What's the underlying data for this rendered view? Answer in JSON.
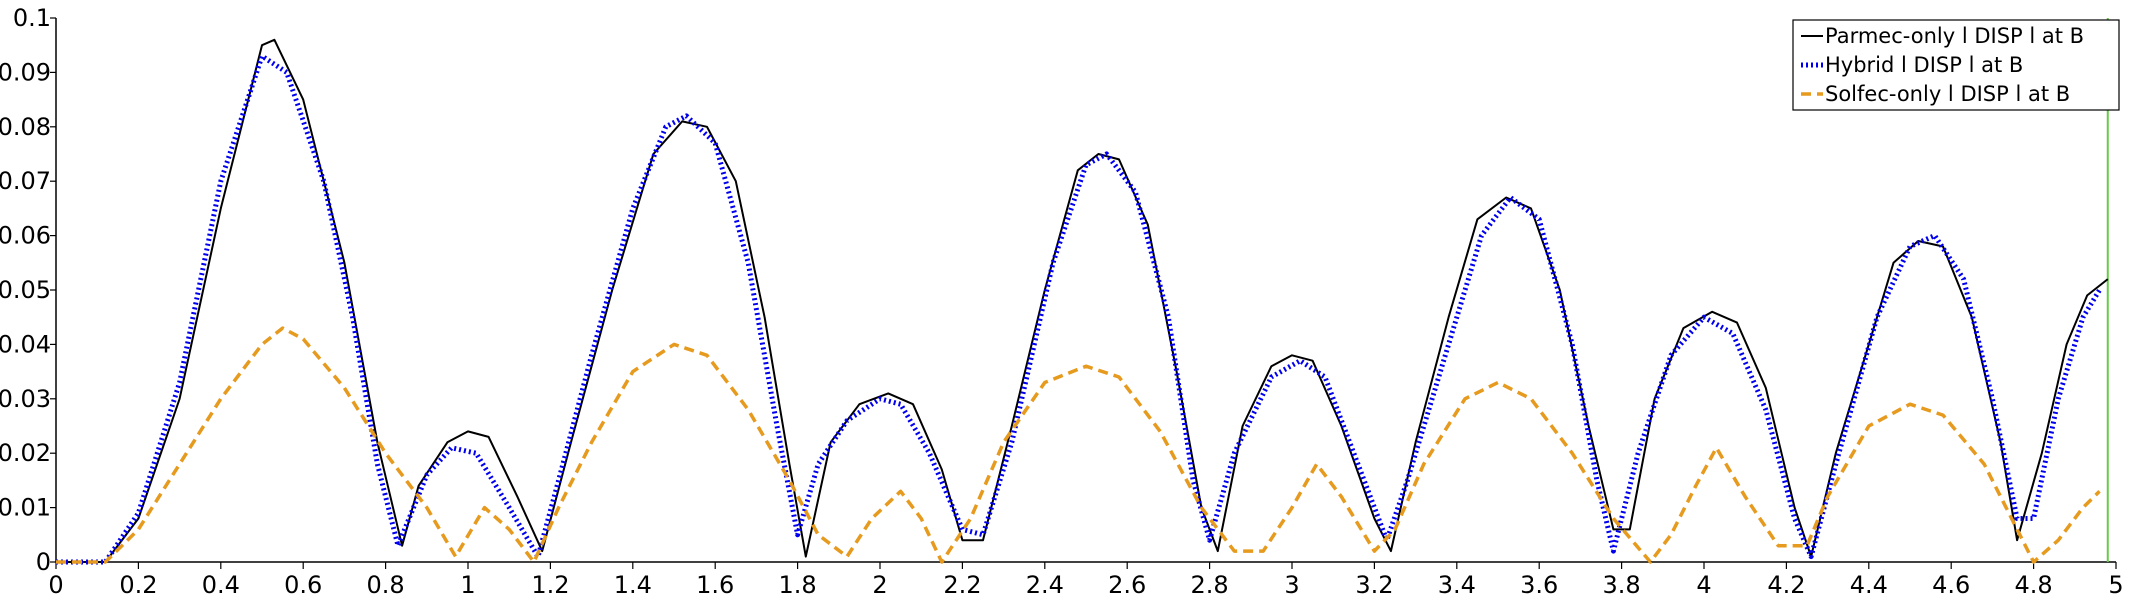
{
  "chart_data": {
    "type": "line",
    "xlim": [
      0,
      5
    ],
    "ylim": [
      0,
      0.1
    ],
    "x_ticks": [
      "0",
      "0.2",
      "0.4",
      "0.6",
      "0.8",
      "1",
      "1.2",
      "1.4",
      "1.6",
      "1.8",
      "2",
      "2.2",
      "2.4",
      "2.6",
      "2.8",
      "3",
      "3.2",
      "3.4",
      "3.6",
      "3.8",
      "4",
      "4.2",
      "4.4",
      "4.6",
      "4.8",
      "5"
    ],
    "y_ticks": [
      "0",
      "0.01",
      "0.02",
      "0.03",
      "0.04",
      "0.05",
      "0.06",
      "0.07",
      "0.08",
      "0.09",
      "0.1"
    ],
    "grid": false,
    "legend_position": "top-right",
    "marker_line": {
      "x": 4.98,
      "color": "#66cc44"
    },
    "series": [
      {
        "name": "Parmec-only  l DISP l  at B",
        "color": "#000000",
        "style": "solid",
        "points": [
          [
            0,
            0
          ],
          [
            0.12,
            0
          ],
          [
            0.2,
            0.008
          ],
          [
            0.3,
            0.03
          ],
          [
            0.4,
            0.065
          ],
          [
            0.5,
            0.095
          ],
          [
            0.53,
            0.096
          ],
          [
            0.6,
            0.085
          ],
          [
            0.7,
            0.055
          ],
          [
            0.78,
            0.022
          ],
          [
            0.84,
            0.003
          ],
          [
            0.88,
            0.014
          ],
          [
            0.95,
            0.022
          ],
          [
            1.0,
            0.024
          ],
          [
            1.05,
            0.023
          ],
          [
            1.12,
            0.012
          ],
          [
            1.18,
            0.002
          ],
          [
            1.25,
            0.022
          ],
          [
            1.35,
            0.05
          ],
          [
            1.45,
            0.075
          ],
          [
            1.52,
            0.081
          ],
          [
            1.58,
            0.08
          ],
          [
            1.65,
            0.07
          ],
          [
            1.72,
            0.045
          ],
          [
            1.78,
            0.018
          ],
          [
            1.82,
            0.001
          ],
          [
            1.88,
            0.022
          ],
          [
            1.95,
            0.029
          ],
          [
            2.02,
            0.031
          ],
          [
            2.08,
            0.029
          ],
          [
            2.15,
            0.017
          ],
          [
            2.2,
            0.004
          ],
          [
            2.25,
            0.004
          ],
          [
            2.32,
            0.025
          ],
          [
            2.4,
            0.05
          ],
          [
            2.48,
            0.072
          ],
          [
            2.53,
            0.075
          ],
          [
            2.58,
            0.074
          ],
          [
            2.65,
            0.062
          ],
          [
            2.72,
            0.035
          ],
          [
            2.78,
            0.01
          ],
          [
            2.82,
            0.002
          ],
          [
            2.88,
            0.025
          ],
          [
            2.95,
            0.036
          ],
          [
            3.0,
            0.038
          ],
          [
            3.05,
            0.037
          ],
          [
            3.12,
            0.025
          ],
          [
            3.2,
            0.008
          ],
          [
            3.24,
            0.002
          ],
          [
            3.3,
            0.022
          ],
          [
            3.38,
            0.045
          ],
          [
            3.45,
            0.063
          ],
          [
            3.52,
            0.067
          ],
          [
            3.58,
            0.065
          ],
          [
            3.65,
            0.05
          ],
          [
            3.72,
            0.025
          ],
          [
            3.78,
            0.006
          ],
          [
            3.82,
            0.006
          ],
          [
            3.88,
            0.03
          ],
          [
            3.95,
            0.043
          ],
          [
            4.02,
            0.046
          ],
          [
            4.08,
            0.044
          ],
          [
            4.15,
            0.032
          ],
          [
            4.22,
            0.01
          ],
          [
            4.26,
            0.001
          ],
          [
            4.32,
            0.02
          ],
          [
            4.4,
            0.04
          ],
          [
            4.46,
            0.055
          ],
          [
            4.52,
            0.059
          ],
          [
            4.58,
            0.058
          ],
          [
            4.65,
            0.045
          ],
          [
            4.72,
            0.022
          ],
          [
            4.76,
            0.004
          ],
          [
            4.82,
            0.02
          ],
          [
            4.88,
            0.04
          ],
          [
            4.93,
            0.049
          ],
          [
            4.98,
            0.052
          ]
        ]
      },
      {
        "name": "Hybrid  l DISP l  at B",
        "color": "#0000ee",
        "style": "dotted",
        "points": [
          [
            0,
            0
          ],
          [
            0.12,
            0
          ],
          [
            0.2,
            0.009
          ],
          [
            0.3,
            0.033
          ],
          [
            0.4,
            0.07
          ],
          [
            0.5,
            0.093
          ],
          [
            0.56,
            0.09
          ],
          [
            0.65,
            0.07
          ],
          [
            0.72,
            0.045
          ],
          [
            0.78,
            0.018
          ],
          [
            0.83,
            0.003
          ],
          [
            0.9,
            0.016
          ],
          [
            0.96,
            0.021
          ],
          [
            1.02,
            0.02
          ],
          [
            1.1,
            0.01
          ],
          [
            1.17,
            0.001
          ],
          [
            1.22,
            0.015
          ],
          [
            1.3,
            0.038
          ],
          [
            1.4,
            0.065
          ],
          [
            1.48,
            0.08
          ],
          [
            1.53,
            0.082
          ],
          [
            1.6,
            0.077
          ],
          [
            1.68,
            0.055
          ],
          [
            1.75,
            0.025
          ],
          [
            1.8,
            0.005
          ],
          [
            1.85,
            0.018
          ],
          [
            1.92,
            0.026
          ],
          [
            2.0,
            0.03
          ],
          [
            2.05,
            0.029
          ],
          [
            2.12,
            0.02
          ],
          [
            2.2,
            0.006
          ],
          [
            2.25,
            0.005
          ],
          [
            2.32,
            0.022
          ],
          [
            2.42,
            0.055
          ],
          [
            2.5,
            0.073
          ],
          [
            2.55,
            0.075
          ],
          [
            2.62,
            0.068
          ],
          [
            2.7,
            0.045
          ],
          [
            2.76,
            0.015
          ],
          [
            2.8,
            0.004
          ],
          [
            2.86,
            0.02
          ],
          [
            2.95,
            0.034
          ],
          [
            3.02,
            0.037
          ],
          [
            3.08,
            0.034
          ],
          [
            3.15,
            0.02
          ],
          [
            3.23,
            0.004
          ],
          [
            3.28,
            0.015
          ],
          [
            3.38,
            0.04
          ],
          [
            3.46,
            0.06
          ],
          [
            3.53,
            0.067
          ],
          [
            3.6,
            0.063
          ],
          [
            3.68,
            0.04
          ],
          [
            3.74,
            0.015
          ],
          [
            3.78,
            0.002
          ],
          [
            3.84,
            0.02
          ],
          [
            3.92,
            0.038
          ],
          [
            4.0,
            0.045
          ],
          [
            4.07,
            0.042
          ],
          [
            4.15,
            0.028
          ],
          [
            4.22,
            0.008
          ],
          [
            4.26,
            0.001
          ],
          [
            4.32,
            0.018
          ],
          [
            4.42,
            0.045
          ],
          [
            4.5,
            0.058
          ],
          [
            4.56,
            0.06
          ],
          [
            4.63,
            0.052
          ],
          [
            4.7,
            0.03
          ],
          [
            4.76,
            0.008
          ],
          [
            4.8,
            0.008
          ],
          [
            4.86,
            0.03
          ],
          [
            4.92,
            0.045
          ],
          [
            4.96,
            0.05
          ]
        ]
      },
      {
        "name": "Solfec-only  l DISP l  at B",
        "color": "#e69a1e",
        "style": "dashed",
        "points": [
          [
            0,
            0
          ],
          [
            0.12,
            0
          ],
          [
            0.2,
            0.006
          ],
          [
            0.3,
            0.018
          ],
          [
            0.4,
            0.03
          ],
          [
            0.5,
            0.04
          ],
          [
            0.55,
            0.043
          ],
          [
            0.6,
            0.041
          ],
          [
            0.7,
            0.032
          ],
          [
            0.8,
            0.02
          ],
          [
            0.9,
            0.01
          ],
          [
            0.97,
            0.001
          ],
          [
            1.04,
            0.01
          ],
          [
            1.1,
            0.006
          ],
          [
            1.16,
            0.0
          ],
          [
            1.22,
            0.01
          ],
          [
            1.3,
            0.022
          ],
          [
            1.4,
            0.035
          ],
          [
            1.5,
            0.04
          ],
          [
            1.58,
            0.038
          ],
          [
            1.68,
            0.028
          ],
          [
            1.78,
            0.015
          ],
          [
            1.85,
            0.005
          ],
          [
            1.92,
            0.001
          ],
          [
            1.98,
            0.008
          ],
          [
            2.05,
            0.013
          ],
          [
            2.1,
            0.008
          ],
          [
            2.15,
            0.0
          ],
          [
            2.22,
            0.008
          ],
          [
            2.3,
            0.022
          ],
          [
            2.4,
            0.033
          ],
          [
            2.5,
            0.036
          ],
          [
            2.58,
            0.034
          ],
          [
            2.68,
            0.024
          ],
          [
            2.78,
            0.01
          ],
          [
            2.86,
            0.002
          ],
          [
            2.93,
            0.002
          ],
          [
            3.0,
            0.01
          ],
          [
            3.06,
            0.018
          ],
          [
            3.12,
            0.012
          ],
          [
            3.2,
            0.002
          ],
          [
            3.25,
            0.006
          ],
          [
            3.32,
            0.018
          ],
          [
            3.42,
            0.03
          ],
          [
            3.5,
            0.033
          ],
          [
            3.58,
            0.03
          ],
          [
            3.68,
            0.02
          ],
          [
            3.78,
            0.008
          ],
          [
            3.87,
            0.0
          ],
          [
            3.92,
            0.005
          ],
          [
            3.98,
            0.014
          ],
          [
            4.03,
            0.021
          ],
          [
            4.1,
            0.012
          ],
          [
            4.18,
            0.003
          ],
          [
            4.25,
            0.003
          ],
          [
            4.3,
            0.012
          ],
          [
            4.4,
            0.025
          ],
          [
            4.5,
            0.029
          ],
          [
            4.58,
            0.027
          ],
          [
            4.68,
            0.018
          ],
          [
            4.76,
            0.006
          ],
          [
            4.8,
            0.0
          ],
          [
            4.86,
            0.004
          ],
          [
            4.92,
            0.01
          ],
          [
            4.96,
            0.013
          ]
        ]
      }
    ]
  }
}
